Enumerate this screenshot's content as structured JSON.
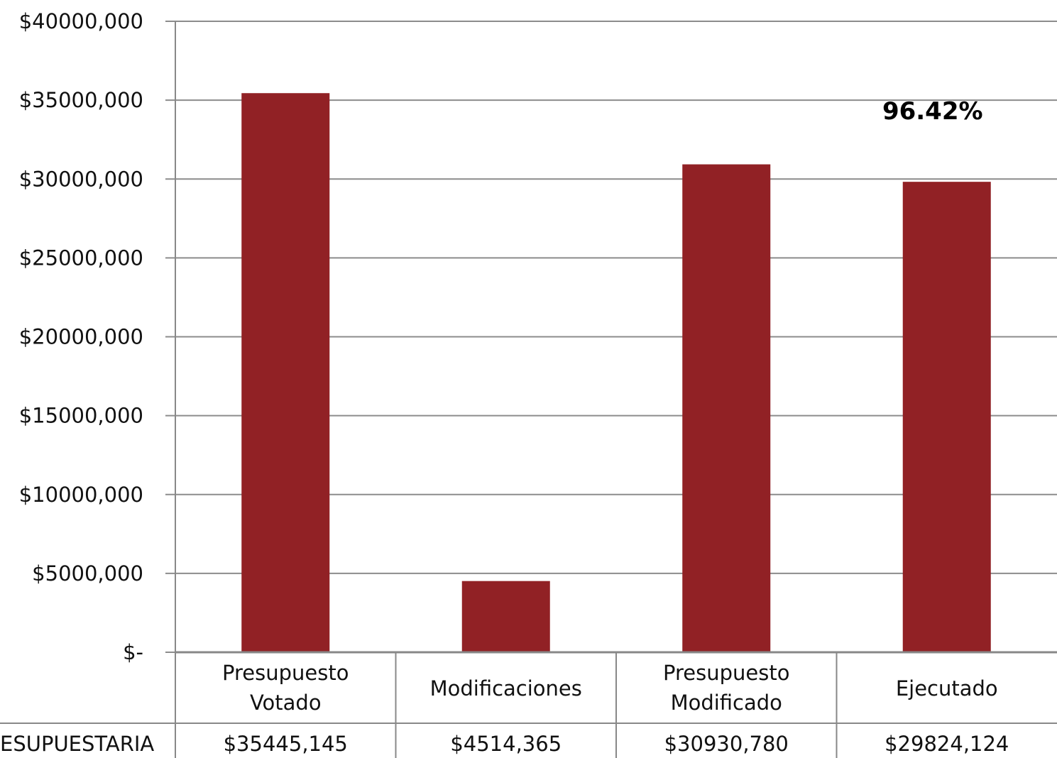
{
  "chart_data": {
    "type": "bar",
    "categories": [
      [
        "Presupuesto",
        "Votado"
      ],
      [
        "Modificaciones"
      ],
      [
        "Presupuesto",
        "Modificado"
      ],
      [
        "Ejecutado"
      ]
    ],
    "values": [
      35445145,
      4514365,
      30930780,
      29824124
    ],
    "value_labels": [
      "$35445,145",
      "$4514,365",
      "$30930,780",
      "$29824,124"
    ],
    "yticks": [
      "$-",
      "$5000,000",
      "$10000,000",
      "$15000,000",
      "$20000,000",
      "$25000,000",
      "$30000,000",
      "$35000,000",
      "$40000,000"
    ],
    "ylim": [
      0,
      40000000
    ],
    "table_row_label": "ESUPUESTARIA",
    "annotation": {
      "text": "96.42%",
      "category_index": 3
    },
    "bar_color": "#912125",
    "grid": true
  }
}
